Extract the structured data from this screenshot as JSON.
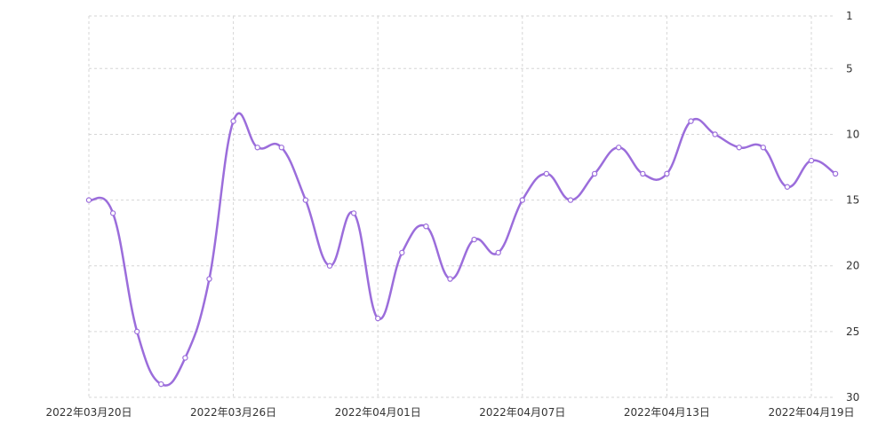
{
  "chart_data": {
    "type": "line",
    "title": "",
    "xlabel": "",
    "ylabel": "",
    "ylim": [
      1,
      30
    ],
    "y_axis_inverted": true,
    "y_axis_side": "right",
    "y_ticks": [
      1,
      5,
      10,
      15,
      20,
      25,
      30
    ],
    "x_tick_labels": [
      "2022年03月20日",
      "2022年03月26日",
      "2022年04月01日",
      "2022年04月07日",
      "2022年04月13日",
      "2022年04月19日"
    ],
    "grid": true,
    "smooth": true,
    "x": [
      "2022-03-20",
      "2022-03-21",
      "2022-03-22",
      "2022-03-23",
      "2022-03-24",
      "2022-03-25",
      "2022-03-26",
      "2022-03-27",
      "2022-03-28",
      "2022-03-29",
      "2022-03-30",
      "2022-03-31",
      "2022-04-01",
      "2022-04-02",
      "2022-04-03",
      "2022-04-04",
      "2022-04-05",
      "2022-04-06",
      "2022-04-07",
      "2022-04-08",
      "2022-04-09",
      "2022-04-10",
      "2022-04-11",
      "2022-04-12",
      "2022-04-13",
      "2022-04-14",
      "2022-04-15",
      "2022-04-16",
      "2022-04-17",
      "2022-04-18",
      "2022-04-19",
      "2022-04-20"
    ],
    "series": [
      {
        "values": [
          15,
          16,
          25,
          29,
          27,
          21,
          9,
          11,
          11,
          15,
          20,
          16,
          24,
          19,
          17,
          21,
          18,
          19,
          15,
          13,
          15,
          13,
          11,
          13,
          13,
          9,
          10,
          11,
          11,
          14,
          12,
          13
        ],
        "color": "#9b6ddb"
      }
    ]
  }
}
